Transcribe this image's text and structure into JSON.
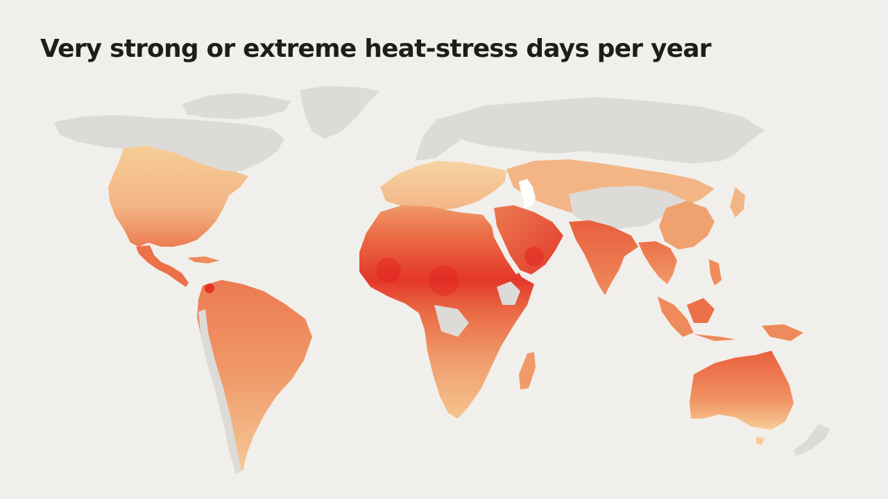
{
  "title": "Very strong or extreme heat-stress days per year",
  "colors": {
    "background": "#f1efeb",
    "land_no_data": "#dcdbd8",
    "scale_low": "#f6cd97",
    "scale_mid": "#ef8a5a",
    "scale_high": "#e4372a",
    "scale_peak": "#e0201d",
    "water": "#ffffff"
  },
  "regions": [
    {
      "id": "north-america",
      "label": "North America"
    },
    {
      "id": "greenland",
      "label": "Greenland"
    },
    {
      "id": "central-america",
      "label": "Central America"
    },
    {
      "id": "south-america",
      "label": "South America"
    },
    {
      "id": "europe",
      "label": "Europe"
    },
    {
      "id": "russia-north-asia",
      "label": "Russia / North Asia"
    },
    {
      "id": "africa",
      "label": "Africa"
    },
    {
      "id": "middle-east",
      "label": "Middle East"
    },
    {
      "id": "south-asia",
      "label": "South Asia"
    },
    {
      "id": "southeast-asia",
      "label": "Southeast Asia"
    },
    {
      "id": "australia",
      "label": "Australia"
    },
    {
      "id": "madagascar",
      "label": "Madagascar"
    },
    {
      "id": "new-zealand",
      "label": "New Zealand"
    }
  ]
}
